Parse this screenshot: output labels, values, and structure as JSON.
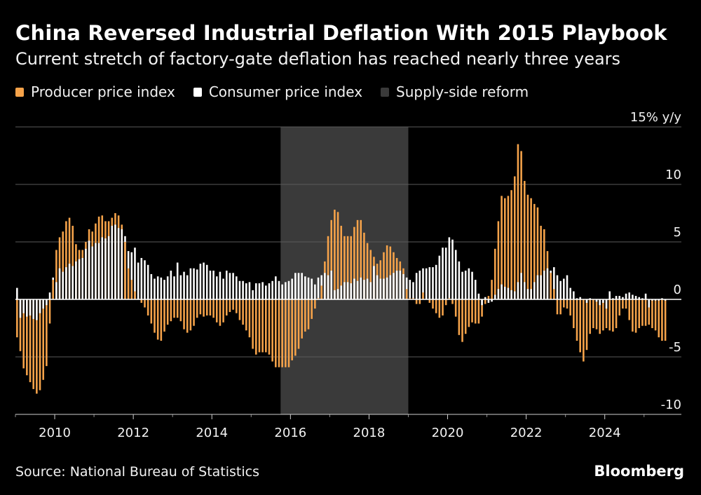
{
  "title": "China Reversed Industrial Deflation With 2015 Playbook",
  "subtitle": "Current stretch of factory-gate deflation has reached nearly three years",
  "legend": {
    "ppi": "Producer price index",
    "cpi": "Consumer price index",
    "reform": "Supply-side reform"
  },
  "colors": {
    "ppi": "#f6a34a",
    "cpi": "#ffffff",
    "reform": "#3a3a3a",
    "grid": "#5a5a5a",
    "background": "#000000"
  },
  "source": "Source: National Bureau of Statistics",
  "brand": "Bloomberg",
  "chart_data": {
    "type": "bar",
    "title": "China Reversed Industrial Deflation With 2015 Playbook",
    "ylabel": "15% y/y",
    "ylim": [
      -10,
      15
    ],
    "yticks": [
      15,
      10,
      5,
      0,
      -5,
      -10
    ],
    "ytick_labels": [
      "15% y/y",
      "10",
      "5",
      "0",
      "-5",
      "-10"
    ],
    "xticks": [
      "2010",
      "2012",
      "2014",
      "2016",
      "2018",
      "2020",
      "2022",
      "2024"
    ],
    "x_start": "2009-01",
    "x_range": [
      2009.0,
      2025.95
    ],
    "shaded_region": {
      "name": "Supply-side reform",
      "start": 2015.75,
      "end": 2019.0
    },
    "series": [
      {
        "name": "Producer price index",
        "values": [
          -3.3,
          -4.5,
          -6.0,
          -6.6,
          -7.2,
          -7.8,
          -8.2,
          -7.9,
          -7.0,
          -5.8,
          -2.1,
          1.7,
          4.3,
          5.4,
          5.9,
          6.8,
          7.1,
          6.4,
          4.8,
          4.3,
          4.3,
          5.0,
          6.1,
          5.9,
          6.6,
          7.2,
          7.3,
          6.8,
          6.8,
          7.1,
          7.5,
          7.3,
          6.5,
          5.0,
          2.7,
          1.7,
          0.7,
          0.0,
          -0.3,
          -0.7,
          -1.4,
          -2.1,
          -2.9,
          -3.5,
          -3.6,
          -2.8,
          -2.2,
          -1.9,
          -1.6,
          -1.6,
          -1.9,
          -2.6,
          -2.9,
          -2.7,
          -2.3,
          -1.6,
          -1.3,
          -1.5,
          -1.4,
          -1.4,
          -1.6,
          -2.0,
          -2.3,
          -2.0,
          -1.4,
          -1.1,
          -0.9,
          -1.2,
          -1.8,
          -2.2,
          -2.7,
          -3.3,
          -4.3,
          -4.8,
          -4.6,
          -4.6,
          -4.6,
          -4.8,
          -5.4,
          -5.9,
          -5.9,
          -5.9,
          -5.9,
          -5.9,
          -5.3,
          -4.9,
          -4.3,
          -3.4,
          -2.8,
          -2.6,
          -1.7,
          -0.8,
          0.1,
          1.2,
          3.3,
          5.5,
          6.9,
          7.8,
          7.6,
          6.4,
          5.5,
          5.5,
          5.5,
          6.3,
          6.9,
          6.9,
          5.8,
          4.9,
          4.3,
          3.7,
          3.1,
          3.4,
          4.1,
          4.7,
          4.6,
          4.1,
          3.6,
          3.3,
          2.7,
          0.9,
          0.1,
          0.1,
          -0.4,
          -0.4,
          0.6,
          0.0,
          -0.3,
          -0.8,
          -1.2,
          -1.6,
          -1.4,
          -0.5,
          0.1,
          -0.4,
          -1.5,
          -3.1,
          -3.7,
          -3.0,
          -2.4,
          -2.0,
          -2.1,
          -2.1,
          -1.5,
          -0.4,
          0.3,
          1.7,
          4.4,
          6.8,
          9.0,
          8.8,
          9.0,
          9.5,
          10.7,
          13.5,
          12.9,
          10.3,
          9.1,
          8.8,
          8.3,
          8.0,
          6.4,
          6.1,
          4.2,
          2.3,
          0.9,
          -1.3,
          -1.3,
          -0.7,
          -0.8,
          -1.4,
          -2.5,
          -3.6,
          -4.6,
          -5.4,
          -4.4,
          -3.0,
          -2.5,
          -2.6,
          -3.0,
          -2.7,
          -2.5,
          -2.7,
          -2.8,
          -2.5,
          -1.4,
          -0.8,
          -0.8,
          -1.8,
          -2.8,
          -2.9,
          -2.5,
          -2.3,
          -2.3,
          -2.2,
          -2.5,
          -2.7,
          -3.3,
          -3.6,
          -3.6
        ]
      },
      {
        "name": "Consumer price index",
        "values": [
          1.0,
          -1.6,
          -1.2,
          -1.5,
          -1.4,
          -1.7,
          -1.8,
          -1.2,
          -0.8,
          -0.5,
          0.6,
          1.9,
          1.5,
          2.7,
          2.4,
          2.8,
          3.1,
          2.9,
          3.3,
          3.5,
          3.6,
          4.4,
          5.1,
          4.6,
          4.9,
          4.9,
          5.4,
          5.3,
          5.5,
          6.4,
          6.5,
          6.2,
          6.1,
          5.5,
          4.2,
          4.1,
          4.5,
          3.2,
          3.6,
          3.4,
          3.0,
          2.2,
          1.8,
          2.0,
          1.9,
          1.7,
          2.0,
          2.5,
          2.0,
          3.2,
          2.1,
          2.4,
          2.1,
          2.7,
          2.7,
          2.6,
          3.1,
          3.2,
          3.0,
          2.5,
          2.5,
          2.0,
          2.4,
          1.8,
          2.5,
          2.3,
          2.3,
          2.0,
          1.6,
          1.6,
          1.4,
          1.5,
          0.8,
          1.4,
          1.4,
          1.5,
          1.2,
          1.4,
          1.6,
          2.0,
          1.6,
          1.3,
          1.5,
          1.6,
          1.8,
          2.3,
          2.3,
          2.3,
          2.0,
          1.9,
          1.8,
          1.3,
          1.9,
          2.1,
          2.3,
          2.1,
          2.5,
          0.8,
          0.9,
          1.2,
          1.5,
          1.5,
          1.4,
          1.8,
          1.6,
          1.9,
          1.7,
          1.8,
          1.5,
          2.9,
          2.1,
          1.8,
          1.8,
          1.9,
          2.1,
          2.3,
          2.5,
          2.5,
          2.2,
          1.9,
          1.7,
          1.5,
          2.3,
          2.5,
          2.7,
          2.7,
          2.8,
          2.8,
          3.0,
          3.8,
          4.5,
          4.5,
          5.4,
          5.2,
          4.3,
          3.3,
          2.4,
          2.5,
          2.7,
          2.4,
          1.7,
          0.5,
          -0.5,
          0.2,
          -0.3,
          -0.2,
          0.4,
          0.9,
          1.3,
          1.1,
          1.0,
          0.8,
          0.7,
          1.5,
          2.3,
          1.5,
          0.9,
          0.9,
          1.5,
          2.1,
          2.1,
          2.5,
          2.7,
          2.5,
          2.8,
          2.1,
          1.6,
          1.8,
          2.1,
          1.0,
          0.7,
          0.1,
          0.2,
          0.0,
          -0.3,
          0.1,
          0.0,
          -0.2,
          -0.5,
          -0.3,
          -0.8,
          0.7,
          0.1,
          0.3,
          0.3,
          0.2,
          0.5,
          0.6,
          0.4,
          0.3,
          0.2,
          0.1,
          0.5,
          -0.7,
          -0.1,
          -0.1,
          -0.1,
          0.1,
          -0.1
        ]
      }
    ]
  }
}
